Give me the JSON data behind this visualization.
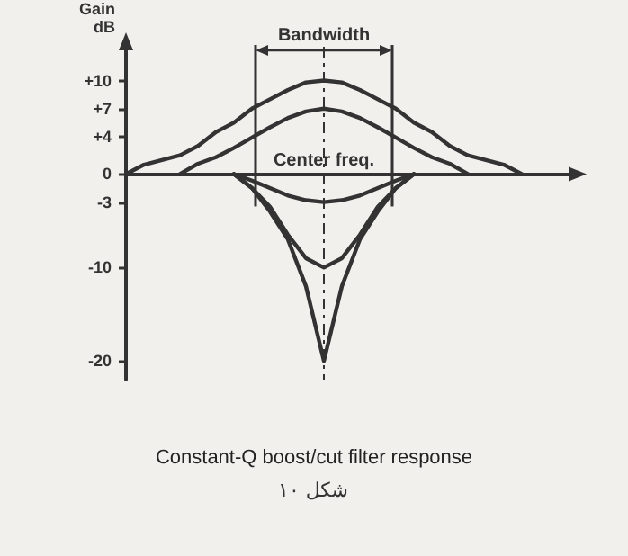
{
  "chart_data": {
    "type": "line",
    "title": "Constant-Q boost/cut filter response",
    "ylabel": "Gain\ndB",
    "annotations": [
      "Bandwidth",
      "Center freq.",
      "شکل ۱۰"
    ],
    "categories": [
      null,
      null,
      null,
      null,
      null,
      null,
      null,
      null,
      null,
      null,
      null,
      null,
      null,
      null,
      null,
      null,
      null,
      null,
      null,
      null,
      null,
      null,
      null,
      null,
      null,
      null
    ],
    "series": [
      {
        "color": "#333333",
        "values": [
          0,
          1,
          1.5,
          2,
          3,
          4.5,
          5.5,
          7,
          8,
          9,
          9.8,
          10,
          9.8,
          9,
          8,
          7,
          5.5,
          4.5,
          3,
          2,
          1.5,
          1,
          0,
          null,
          null,
          null
        ]
      },
      {
        "color": "#333333",
        "values": [
          null,
          null,
          null,
          0,
          1.1,
          1.8,
          2.8,
          3.9,
          5,
          6,
          6.7,
          7,
          6.7,
          6,
          5,
          3.9,
          2.8,
          1.8,
          1.1,
          0,
          null,
          null,
          null,
          null,
          null,
          null
        ]
      },
      {
        "color": "#333333",
        "values": [
          null,
          null,
          null,
          null,
          null,
          null,
          0,
          -0.7,
          -1.5,
          -2.3,
          -2.8,
          -3,
          -2.8,
          -2.3,
          -1.5,
          -0.7,
          0,
          null,
          null,
          null,
          null,
          null,
          null,
          null,
          null,
          null
        ]
      },
      {
        "color": "#333333",
        "values": [
          null,
          null,
          null,
          null,
          null,
          null,
          0,
          -1.5,
          -3.5,
          -6.5,
          -9,
          -10,
          -9,
          -6.5,
          -3.5,
          -1.5,
          0,
          null,
          null,
          null,
          null,
          null,
          null,
          null,
          null,
          null
        ]
      },
      {
        "color": "#333333",
        "values": [
          null,
          null,
          null,
          null,
          null,
          null,
          0,
          -1.5,
          -4,
          -7,
          -12,
          -20,
          -12,
          -7,
          -4,
          -1.5,
          0,
          null,
          null,
          null,
          null,
          null,
          null,
          null,
          null,
          null
        ]
      }
    ],
    "ylim": [
      -22,
      14
    ],
    "yticks": [
      {
        "value": 10,
        "label": "+10"
      },
      {
        "value": 7,
        "label": "+7"
      },
      {
        "value": 4,
        "label": "+4"
      },
      0,
      {
        "value": -3,
        "label": "-3"
      },
      {
        "value": -10,
        "label": "-10"
      },
      {
        "value": -20,
        "label": "-20"
      }
    ],
    "tick_labels": "y",
    "grid": false,
    "marker": "none",
    "line_style": "solid"
  }
}
